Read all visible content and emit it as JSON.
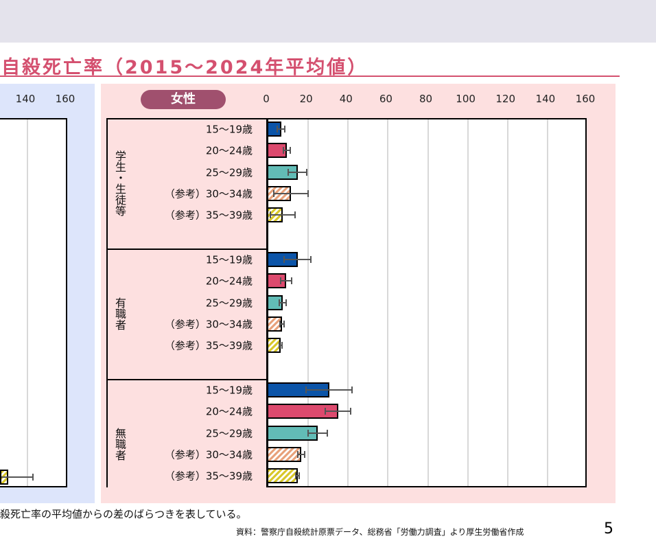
{
  "title": "自殺死亡率（2015～2024年平均値）",
  "left_panel": {
    "ticks": [
      "140",
      "160"
    ]
  },
  "chart_data": {
    "type": "bar",
    "orientation": "horizontal",
    "badge": "女性",
    "xlim": [
      0,
      160
    ],
    "ticks": [
      "0",
      "20",
      "40",
      "60",
      "80",
      "100",
      "120",
      "140",
      "160"
    ],
    "tick_values": [
      0,
      20,
      40,
      60,
      80,
      100,
      120,
      140,
      160
    ],
    "grid": true,
    "colors": [
      "#0b54a8",
      "#dc4a6e",
      "#62bcb6",
      "hatch-#e8a27c",
      "hatch-#d9c82a"
    ],
    "groups": [
      {
        "label": "学生・生徒等",
        "rows": [
          {
            "label": "15～19歳",
            "value": 6.8,
            "err": 2.3
          },
          {
            "label": "20～24歳",
            "value": 9.6,
            "err": 2.2
          },
          {
            "label": "25～29歳",
            "value": 15,
            "err": 5
          },
          {
            "label": "（参考）30～34歳",
            "value": 11.6,
            "err": 9
          },
          {
            "label": "（参考）35～39歳",
            "value": 7.5,
            "err": 6.5
          }
        ]
      },
      {
        "label": "有職者",
        "rows": [
          {
            "label": "15～19歳",
            "value": 15,
            "err": 7
          },
          {
            "label": "20～24歳",
            "value": 9.3,
            "err": 3
          },
          {
            "label": "25～29歳",
            "value": 7.5,
            "err": 2
          },
          {
            "label": "（参考）30～34歳",
            "value": 7.2,
            "err": 1.3
          },
          {
            "label": "（参考）35～39歳",
            "value": 6.5,
            "err": 1
          }
        ]
      },
      {
        "label": "無職者",
        "rows": [
          {
            "label": "15～19歳",
            "value": 30.8,
            "err": 12
          },
          {
            "label": "20～24歳",
            "value": 35.3,
            "err": 6.7
          },
          {
            "label": "25～29歳",
            "value": 25,
            "err": 5.2
          },
          {
            "label": "（参考）30～34歳",
            "value": 16.8,
            "err": 2
          },
          {
            "label": "（参考）35～39歳",
            "value": 15,
            "err": 1.3
          }
        ]
      }
    ]
  },
  "footnote": "殺死亡率の平均値からの差のばらつきを表している。",
  "source": "資料：警察庁自殺統計原票データ、総務省「労働力調査」より厚生労働省作成",
  "page_number": "5"
}
